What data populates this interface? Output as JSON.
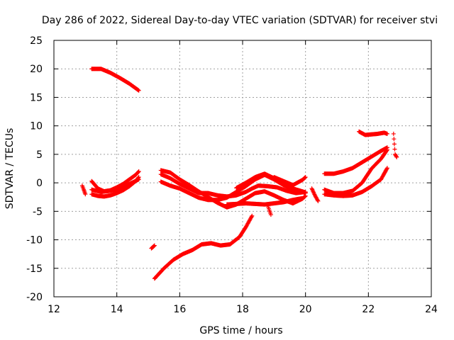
{
  "chart_data": {
    "type": "scatter",
    "title": "Day 286 of 2022, Sidereal Day-to-day VTEC variation (SDTVAR) for receiver stvi",
    "xlabel": "GPS time / hours",
    "ylabel": "SDTVAR / TECUs",
    "xlim": [
      12,
      24
    ],
    "ylim": [
      -20,
      25
    ],
    "xticks": [
      12,
      14,
      16,
      18,
      20,
      22,
      24
    ],
    "yticks": [
      -20,
      -15,
      -10,
      -5,
      0,
      5,
      10,
      15,
      20,
      25
    ],
    "grid": true,
    "legend": "none",
    "marker": "+",
    "color": "#ff0000",
    "series": [
      {
        "x": [
          13.2,
          13.5,
          13.8,
          14.1,
          14.4,
          14.7
        ],
        "y": [
          20.0,
          20.0,
          19.3,
          18.4,
          17.4,
          16.2
        ]
      },
      {
        "x": [
          12.9,
          12.95,
          13.0
        ],
        "y": [
          -0.5,
          -1.2,
          -2.0
        ]
      },
      {
        "x": [
          13.2,
          13.4,
          13.6,
          13.8,
          14.0,
          14.2,
          14.4,
          14.6,
          14.7
        ],
        "y": [
          -2.0,
          -2.3,
          -2.4,
          -2.2,
          -1.8,
          -1.3,
          -0.6,
          0.3,
          1.0
        ]
      },
      {
        "x": [
          13.2,
          13.4,
          13.6,
          13.8,
          14.0,
          14.2,
          14.4,
          14.6,
          14.7
        ],
        "y": [
          0.3,
          -1.0,
          -1.5,
          -1.3,
          -0.8,
          -0.2,
          0.6,
          1.4,
          2.0
        ]
      },
      {
        "x": [
          13.2,
          13.5,
          13.8,
          14.1,
          14.4,
          14.7
        ],
        "y": [
          -1.2,
          -1.6,
          -1.4,
          -1.0,
          -0.2,
          0.6
        ]
      },
      {
        "x": [
          15.1,
          15.2
        ],
        "y": [
          -11.5,
          -11.0
        ]
      },
      {
        "x": [
          15.2,
          15.5,
          15.8,
          16.1,
          16.4,
          16.7,
          17.0,
          17.3,
          17.6,
          17.9,
          18.1,
          18.3
        ],
        "y": [
          -16.8,
          -15.0,
          -13.5,
          -12.5,
          -11.8,
          -10.8,
          -10.6,
          -11.0,
          -10.8,
          -9.5,
          -7.8,
          -5.8
        ]
      },
      {
        "x": [
          15.4,
          15.7,
          16.0,
          16.3,
          16.6,
          16.9,
          17.2,
          17.5,
          17.8,
          18.1,
          18.4,
          18.7,
          19.0,
          19.3,
          19.6,
          19.9,
          20.0
        ],
        "y": [
          2.2,
          1.8,
          0.6,
          -0.4,
          -1.5,
          -2.5,
          -3.5,
          -4.3,
          -3.8,
          -2.8,
          -1.8,
          -1.5,
          -2.2,
          -3.0,
          -3.6,
          -2.8,
          -2.3
        ]
      },
      {
        "x": [
          15.4,
          15.7,
          16.0,
          16.3,
          16.6,
          16.9,
          17.2,
          17.5,
          17.8,
          18.1,
          18.4,
          18.7,
          19.0,
          19.3,
          19.6,
          19.9,
          20.0
        ],
        "y": [
          0.2,
          -0.5,
          -1.0,
          -1.8,
          -2.6,
          -3.0,
          -3.0,
          -2.6,
          -1.6,
          -0.6,
          0.6,
          1.4,
          0.6,
          -0.4,
          -1.2,
          -1.6,
          -1.8
        ]
      },
      {
        "x": [
          15.4,
          15.7,
          16.0,
          16.3,
          16.6,
          16.9,
          17.2,
          17.5,
          17.8,
          18.1,
          18.3,
          18.5,
          18.8,
          19.1,
          19.4,
          19.7,
          20.0
        ],
        "y": [
          1.5,
          0.8,
          -0.2,
          -1.0,
          -1.8,
          -1.8,
          -2.2,
          -2.4,
          -2.2,
          -1.6,
          -1.0,
          -0.5,
          -0.6,
          -0.8,
          -1.4,
          -1.8,
          -1.6
        ]
      },
      {
        "x": [
          17.8,
          18.1,
          18.4,
          18.7,
          19.0,
          19.3,
          19.6,
          19.9,
          20.0
        ],
        "y": [
          -0.9,
          0.0,
          1.0,
          1.6,
          0.8,
          -0.3,
          -1.0,
          -1.5,
          -1.7
        ]
      },
      {
        "x": [
          17.5,
          17.8,
          18.1,
          18.4,
          18.7,
          19.0,
          19.3,
          19.6,
          19.9
        ],
        "y": [
          -3.8,
          -3.7,
          -3.6,
          -3.7,
          -3.8,
          -3.6,
          -3.4,
          -3.0,
          -2.7
        ]
      },
      {
        "x": [
          18.8,
          18.9
        ],
        "y": [
          -4.0,
          -5.6
        ]
      },
      {
        "x": [
          19.0,
          19.3,
          19.6,
          19.9,
          20.0
        ],
        "y": [
          1.0,
          0.3,
          -0.4,
          0.5,
          1.0
        ]
      },
      {
        "x": [
          20.2,
          20.3,
          20.4
        ],
        "y": [
          -1.0,
          -2.2,
          -3.2
        ]
      },
      {
        "x": [
          20.6,
          20.9,
          21.2,
          21.5,
          21.8,
          22.1,
          22.4,
          22.6
        ],
        "y": [
          1.6,
          1.6,
          2.0,
          2.6,
          3.6,
          4.6,
          5.6,
          6.2
        ]
      },
      {
        "x": [
          20.6,
          20.9,
          21.2,
          21.5,
          21.8,
          22.1,
          22.4,
          22.6
        ],
        "y": [
          -1.2,
          -1.8,
          -1.8,
          -1.4,
          0.0,
          2.5,
          4.2,
          5.8
        ]
      },
      {
        "x": [
          20.6,
          20.9,
          21.2,
          21.5,
          21.8,
          22.1,
          22.4,
          22.6
        ],
        "y": [
          -2.0,
          -2.2,
          -2.3,
          -2.2,
          -1.6,
          -0.6,
          0.6,
          2.6
        ]
      },
      {
        "x": [
          21.7,
          21.9,
          22.1,
          22.3,
          22.5,
          22.6
        ],
        "y": [
          9.0,
          8.4,
          8.5,
          8.6,
          8.8,
          8.6
        ]
      },
      {
        "x": [
          22.8,
          22.85,
          22.9
        ],
        "y": [
          8.6,
          5.0,
          4.5
        ]
      }
    ]
  }
}
